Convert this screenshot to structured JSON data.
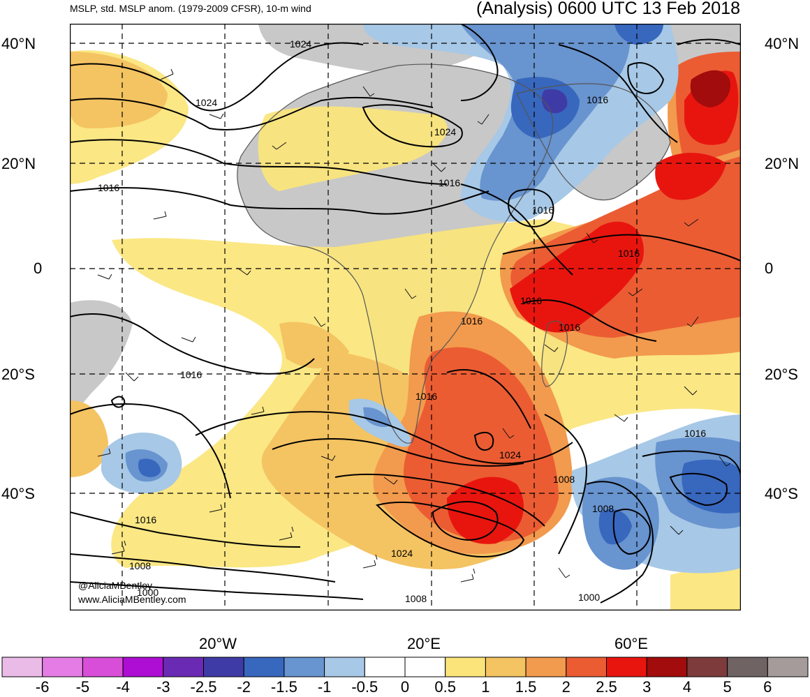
{
  "header": {
    "left_title": "MSLP, std. MSLP anom. (1979-2009 CFSR), 10-m wind",
    "right_title": "(Analysis) 0600 UTC 13 Feb 2018"
  },
  "axes": {
    "lat_labels_left": [
      "40°N",
      "20°N",
      "0",
      "20°S",
      "40°S"
    ],
    "lat_labels_right": [
      "40°N",
      "20°N",
      "0",
      "20°S",
      "40°S"
    ],
    "lon_labels": [
      "20°W",
      "20°E",
      "60°E"
    ]
  },
  "contour_labels": [
    "1024",
    "1024",
    "1024",
    "1016",
    "1016",
    "1016",
    "1016",
    "1016",
    "1016",
    "1016",
    "1016",
    "1016",
    "1024",
    "1016",
    "1008",
    "1024",
    "1008",
    "1008",
    "1000",
    "1016",
    "1000"
  ],
  "credits": {
    "line1": "@AliciaMBentley",
    "line2": "www.AliciaMBentley.com"
  },
  "colorbar": {
    "colors": [
      "#ebbbe8",
      "#e57ce5",
      "#d84ed8",
      "#ae0ed3",
      "#6b2ab4",
      "#3f3ba6",
      "#3867be",
      "#6894cf",
      "#a7c8e6",
      "#ffffff",
      "#ffffff",
      "#fbe57a",
      "#f4c362",
      "#f29a4d",
      "#eb5c33",
      "#e8150f",
      "#a20c0c",
      "#7d3b3b",
      "#706363",
      "#a59b9b"
    ],
    "labels": [
      "-6",
      "-5",
      "-4",
      "-3",
      "-2.5",
      "-2",
      "-1.5",
      "-1",
      "-0.5",
      "0",
      "0.5",
      "1",
      "1.5",
      "2",
      "2.5",
      "3",
      "4",
      "5",
      "6"
    ]
  },
  "legend_colors": {
    "land": "#c8c8c8",
    "water": "#ffffff",
    "contour": "#000000",
    "grid": "#000000"
  }
}
